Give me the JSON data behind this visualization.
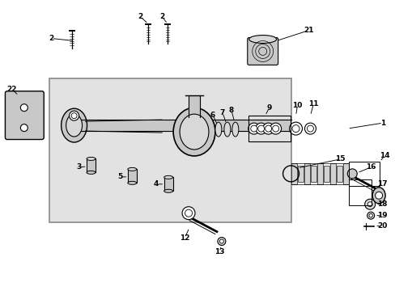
{
  "bg_color": "#ffffff",
  "line_color": "#000000",
  "part_fill": "#c8c8c8",
  "part_fill2": "#d8d8d8",
  "shaded_box_fill": "#e2e2e2",
  "shaded_box_edge": "#888888",
  "figsize": [
    4.89,
    3.6
  ],
  "dpi": 100
}
